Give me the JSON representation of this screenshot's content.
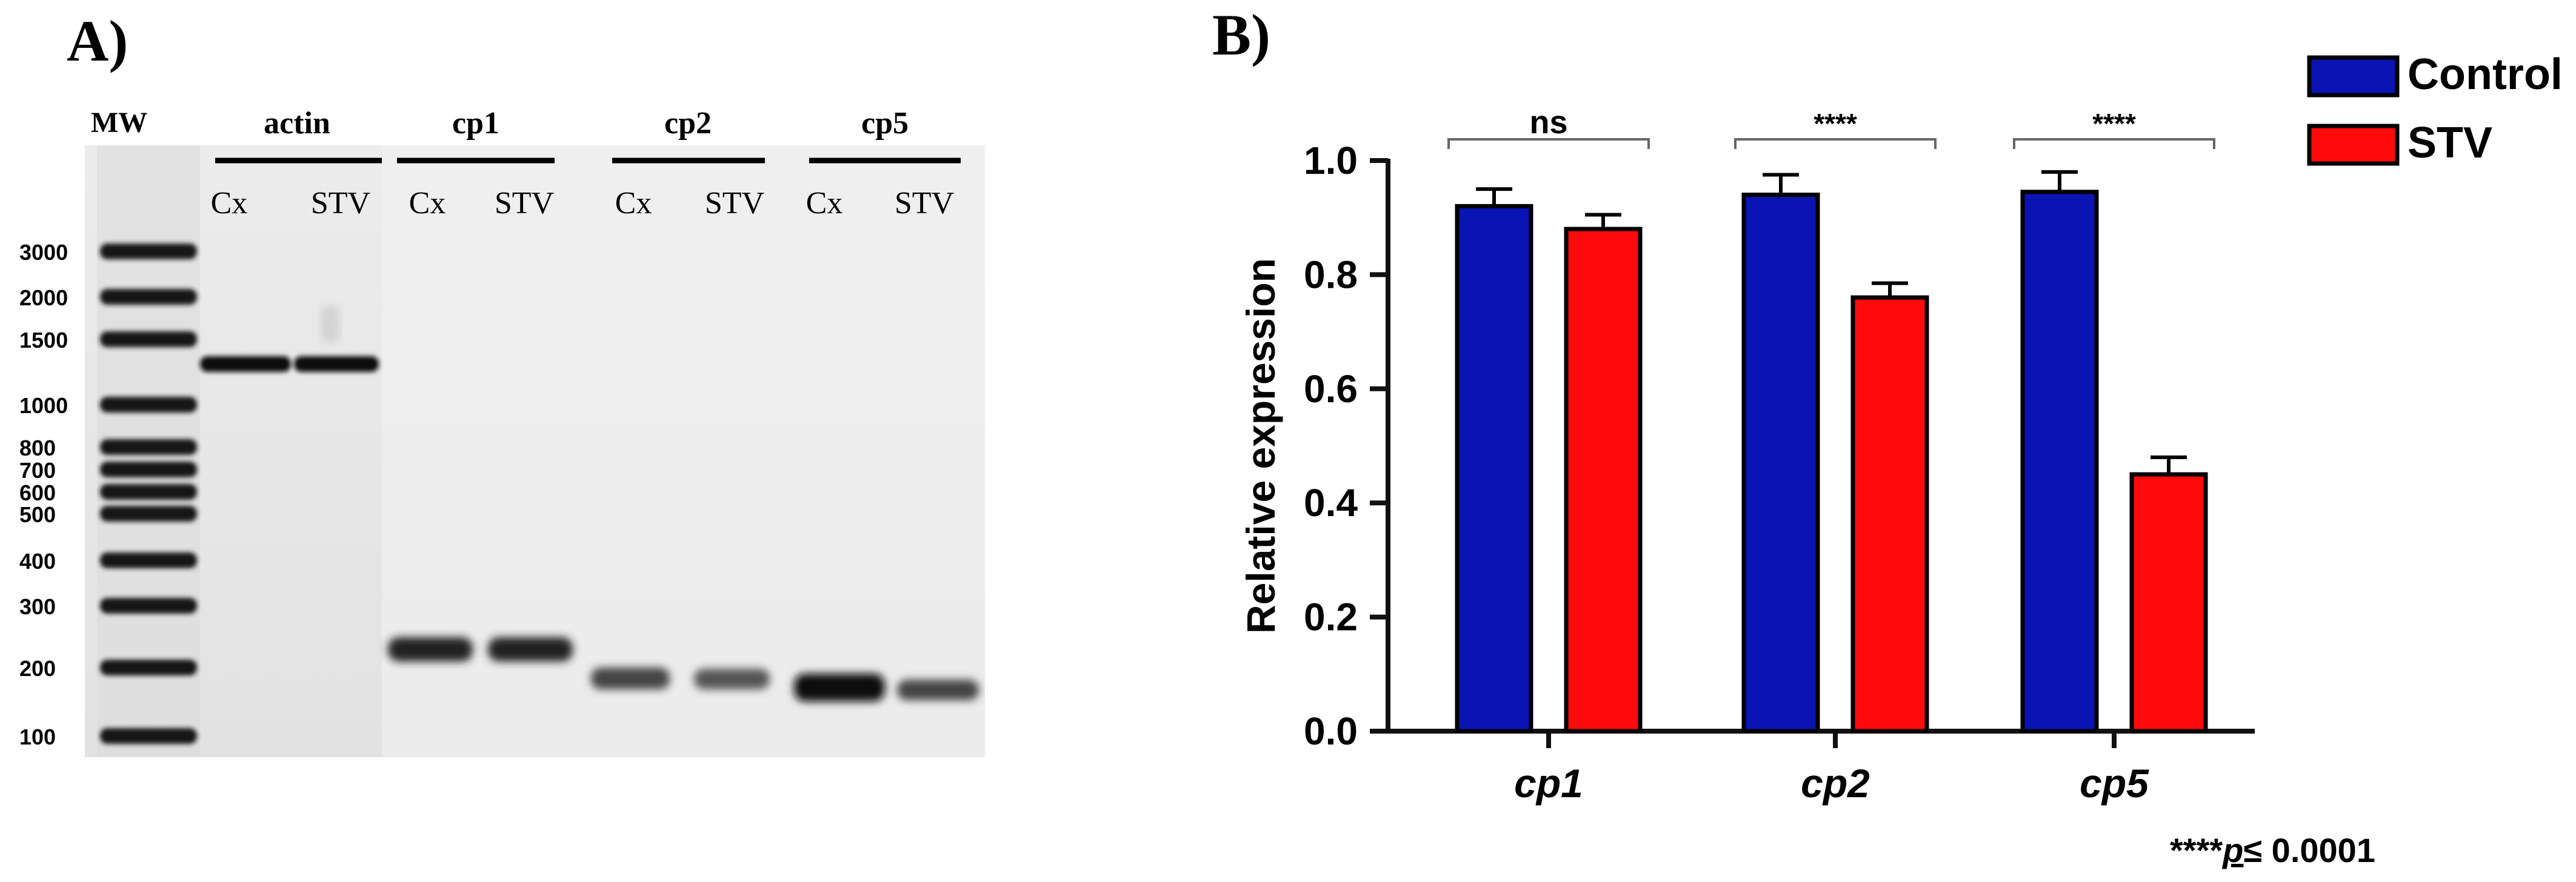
{
  "panel_a": {
    "label": "A)",
    "mw_label": "MW",
    "mw_ladder": [
      "3000",
      "2000",
      "1500",
      "1000",
      "800",
      "700",
      "600",
      "500",
      "400",
      "300",
      "200",
      "100"
    ],
    "gene_groups": [
      {
        "name": "actin",
        "lanes": [
          "Cx",
          "STV"
        ]
      },
      {
        "name": "cp1",
        "lanes": [
          "Cx",
          "STV"
        ]
      },
      {
        "name": "cp2",
        "lanes": [
          "Cx",
          "STV"
        ]
      },
      {
        "name": "cp5",
        "lanes": [
          "Cx",
          "STV"
        ]
      }
    ]
  },
  "panel_b": {
    "label": "B)",
    "footnote": "****p≤ 0.0001",
    "footnote_stars": "****",
    "footnote_p": "p",
    "footnote_rest": "≤ 0.0001"
  },
  "colors": {
    "control": "#0a14b4",
    "stv": "#ff0a0a",
    "axis": "#111111"
  },
  "chart_data": {
    "type": "bar",
    "title": "",
    "xlabel": "",
    "ylabel": "Relative expression",
    "categories": [
      "cp1",
      "cp2",
      "cp5"
    ],
    "series": [
      {
        "name": "Control",
        "values": [
          0.92,
          0.94,
          0.945
        ],
        "errors": [
          0.03,
          0.035,
          0.035
        ]
      },
      {
        "name": "STV",
        "values": [
          0.88,
          0.76,
          0.45
        ],
        "errors": [
          0.025,
          0.025,
          0.03
        ]
      }
    ],
    "ylim": [
      0,
      1.0
    ],
    "yticks": [
      "0.0",
      "0.2",
      "0.4",
      "0.6",
      "0.8",
      "1.0"
    ],
    "significance": [
      "ns",
      "****",
      "****"
    ],
    "legend": [
      "Control",
      "STV"
    ],
    "legend_position": "top-right",
    "grid": false
  }
}
